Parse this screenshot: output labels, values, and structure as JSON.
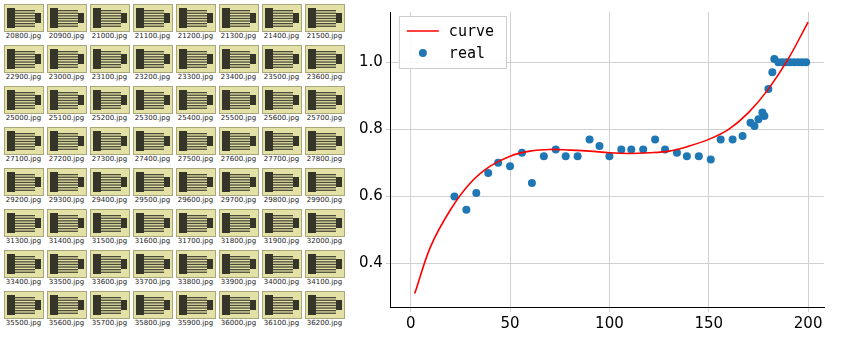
{
  "thumbnails": {
    "rows": [
      [
        "20800.jpg",
        "20900.jpg",
        "21000.jpg",
        "21100.jpg",
        "21200.jpg",
        "21300.jpg",
        "21400.jpg",
        "21500.jpg"
      ],
      [
        "22900.jpg",
        "23000.jpg",
        "23100.jpg",
        "23200.jpg",
        "23300.jpg",
        "23400.jpg",
        "23500.jpg",
        "23600.jpg"
      ],
      [
        "25000.jpg",
        "25100.jpg",
        "25200.jpg",
        "25300.jpg",
        "25400.jpg",
        "25500.jpg",
        "25600.jpg",
        "25700.jpg"
      ],
      [
        "27100.jpg",
        "27200.jpg",
        "27300.jpg",
        "27400.jpg",
        "27500.jpg",
        "27600.jpg",
        "27700.jpg",
        "27800.jpg"
      ],
      [
        "29200.jpg",
        "29300.jpg",
        "29400.jpg",
        "29500.jpg",
        "29600.jpg",
        "29700.jpg",
        "29800.jpg",
        "29900.jpg"
      ],
      [
        "31300.jpg",
        "31400.jpg",
        "31500.jpg",
        "31600.jpg",
        "31700.jpg",
        "31800.jpg",
        "31900.jpg",
        "32000.jpg"
      ],
      [
        "33400.jpg",
        "33500.jpg",
        "33600.jpg",
        "33700.jpg",
        "33800.jpg",
        "33900.jpg",
        "34000.jpg",
        "34100.jpg"
      ],
      [
        "35500.jpg",
        "35600.jpg",
        "35700.jpg",
        "35800.jpg",
        "35900.jpg",
        "36000.jpg",
        "36100.jpg",
        "36200.jpg"
      ]
    ]
  },
  "chart_data": {
    "type": "scatter",
    "xlim": [
      -10,
      208
    ],
    "ylim": [
      0.27,
      1.15
    ],
    "xticks": [
      0,
      50,
      100,
      150,
      200
    ],
    "yticks": [
      0.4,
      0.6,
      0.8,
      {
        "value": 1,
        "label": "1.0"
      }
    ],
    "grid": true,
    "legend": "upper left",
    "series": [
      {
        "name": "curve",
        "type": "line",
        "color": "#ff0000",
        "line_style": "solid",
        "x": [
          2,
          10,
          20,
          30,
          40,
          50,
          60,
          70,
          80,
          90,
          100,
          110,
          120,
          130,
          140,
          150,
          160,
          170,
          180,
          190,
          200
        ],
        "values": [
          0.31,
          0.45,
          0.56,
          0.64,
          0.69,
          0.72,
          0.735,
          0.74,
          0.738,
          0.735,
          0.73,
          0.728,
          0.73,
          0.735,
          0.75,
          0.77,
          0.8,
          0.85,
          0.92,
          1.01,
          1.12
        ]
      },
      {
        "name": "real",
        "type": "scatter",
        "color": "#1f77b4",
        "marker": "circle",
        "x": [
          22,
          28,
          33,
          39,
          44,
          50,
          56,
          61,
          67,
          73,
          78,
          84,
          90,
          95,
          100,
          106,
          111,
          117,
          123,
          128,
          134,
          139,
          145,
          151,
          156,
          162,
          167,
          171,
          173,
          175,
          177,
          178,
          180,
          182,
          183,
          185,
          187,
          189,
          191,
          193,
          195,
          197,
          199
        ],
        "values": [
          0.6,
          0.56,
          0.61,
          0.67,
          0.7,
          0.69,
          0.73,
          0.64,
          0.72,
          0.74,
          0.72,
          0.72,
          0.77,
          0.75,
          0.72,
          0.74,
          0.74,
          0.74,
          0.77,
          0.74,
          0.73,
          0.72,
          0.72,
          0.71,
          0.77,
          0.77,
          0.78,
          0.82,
          0.81,
          0.83,
          0.85,
          0.84,
          0.92,
          0.97,
          1.01,
          1.0,
          1.0,
          1.0,
          1.0,
          1.0,
          1.0,
          1.0,
          1.0
        ]
      }
    ]
  }
}
